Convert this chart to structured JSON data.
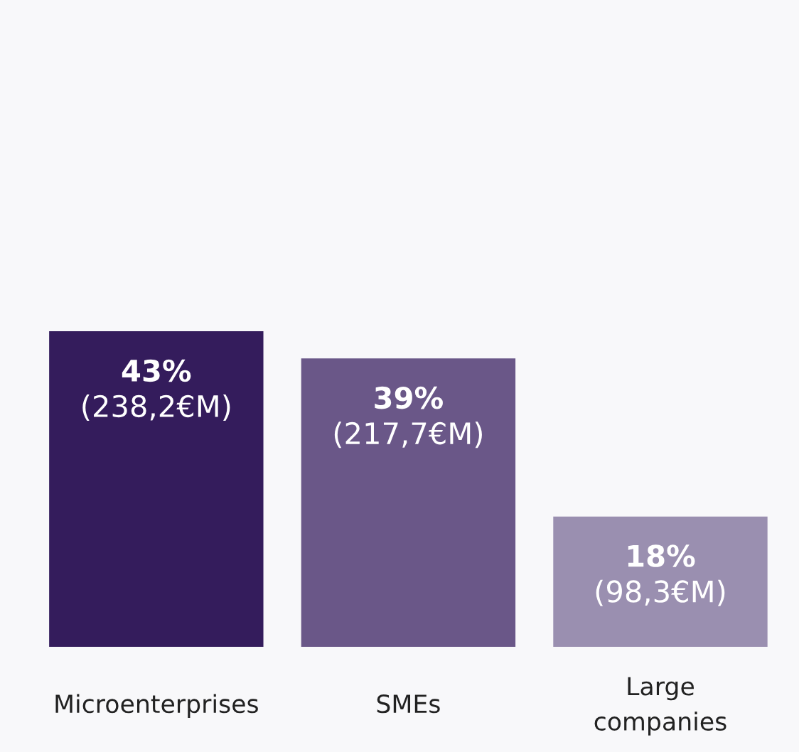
{
  "chart_data": {
    "type": "bar",
    "categories": [
      "Microenterprises",
      "SMEs",
      "Large companies"
    ],
    "values": [
      238.2,
      217.7,
      98.3
    ],
    "colors": [
      "#341c5c",
      "#6a5788",
      "#9a8fb0"
    ],
    "value_labels": [
      "43%\n(238,2€M)",
      "39%\n(217,7€M)",
      "18%\n(98,3€M)"
    ]
  }
}
